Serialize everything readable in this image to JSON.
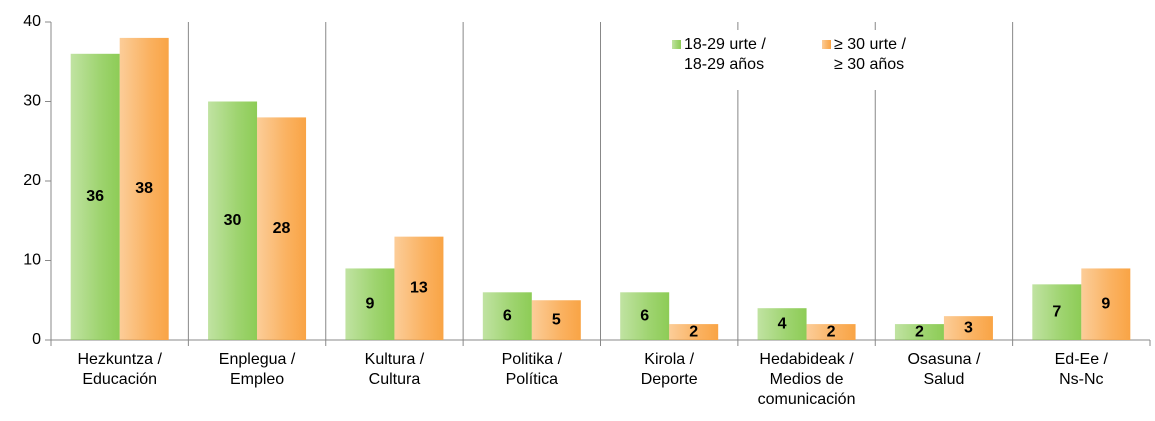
{
  "chart_data": {
    "type": "bar",
    "categories": [
      "Hezkuntza /\nEducación",
      "Enplegua /\nEmpleo",
      "Kultura /\nCultura",
      "Politika /\nPolítica",
      "Kirola /\nDeporte",
      "Hedabideak /\nMedios de\ncomunicación",
      "Osasuna /\nSalud",
      "Ed-Ee /\nNs-Nc"
    ],
    "series": [
      {
        "name": "18-29 urte /\n18-29 años",
        "color": "#8dcc56",
        "values": [
          36,
          30,
          9,
          6,
          6,
          4,
          2,
          7
        ]
      },
      {
        "name": "≥ 30 urte /\n≥ 30 años",
        "color": "#f9a445",
        "values": [
          38,
          28,
          13,
          5,
          2,
          2,
          3,
          9
        ]
      }
    ],
    "ylim": [
      0,
      40
    ],
    "yticks": [
      0,
      10,
      20,
      30,
      40
    ],
    "legend": "top-right",
    "data_labels": true
  }
}
